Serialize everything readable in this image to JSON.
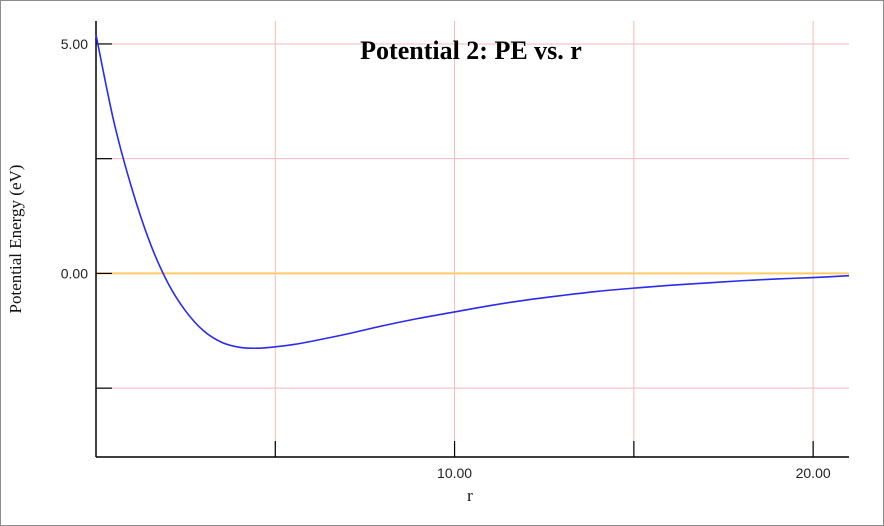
{
  "chart_data": {
    "type": "line",
    "title": "Potential 2: PE vs. r",
    "xlabel": "r",
    "ylabel": "Potential Energy (eV)",
    "xlim": [
      0,
      21
    ],
    "ylim": [
      -4.0,
      5.5
    ],
    "grid": true,
    "x_ticks": [
      {
        "value": 5,
        "label": ""
      },
      {
        "value": 10,
        "label": "10.00"
      },
      {
        "value": 15,
        "label": ""
      },
      {
        "value": 20,
        "label": "20.00"
      }
    ],
    "y_ticks": [
      {
        "value": 5,
        "label": "5.00"
      },
      {
        "value": 2.5,
        "label": ""
      },
      {
        "value": 0,
        "label": "0.00"
      },
      {
        "value": -2.5,
        "label": ""
      }
    ],
    "reference_line": {
      "y": 0,
      "color": "#ffcc66"
    },
    "grid_color": "#f4b8bd",
    "series": [
      {
        "color": "#2a2af0",
        "x": [
          0.0,
          0.5,
          1.0,
          1.5,
          2.0,
          2.5,
          3.0,
          3.5,
          4.0,
          4.5,
          5.0,
          5.5,
          6.0,
          7.0,
          8.0,
          9.0,
          10.0,
          11.0,
          12.0,
          13.0,
          14.0,
          15.0,
          16.0,
          17.0,
          18.0,
          19.0,
          20.0,
          21.0
        ],
        "y": [
          5.2,
          3.3,
          1.85,
          0.68,
          -0.2,
          -0.82,
          -1.25,
          -1.5,
          -1.61,
          -1.63,
          -1.6,
          -1.55,
          -1.48,
          -1.32,
          -1.14,
          -0.98,
          -0.84,
          -0.7,
          -0.58,
          -0.48,
          -0.39,
          -0.32,
          -0.26,
          -0.21,
          -0.16,
          -0.12,
          -0.09,
          -0.05
        ]
      }
    ]
  }
}
